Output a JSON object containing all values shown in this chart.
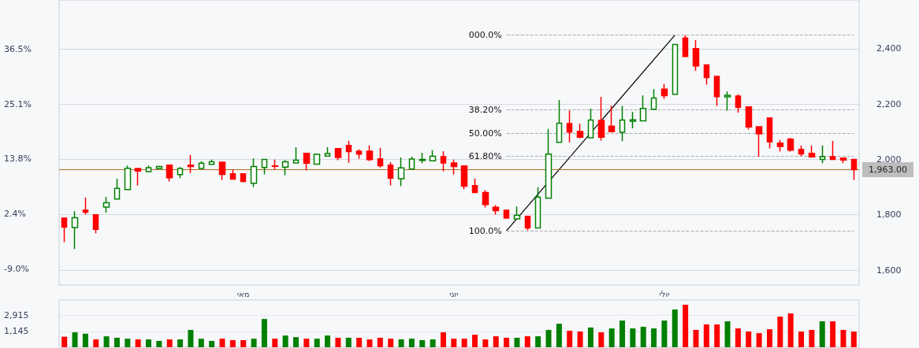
{
  "chart_data": [
    {
      "type": "candlestick",
      "categories": [
        null,
        null,
        null,
        null,
        null,
        null,
        null,
        null,
        null,
        null,
        null,
        null,
        null,
        null,
        null,
        null,
        null,
        "מאי",
        null,
        null,
        null,
        null,
        null,
        null,
        null,
        null,
        null,
        null,
        null,
        null,
        null,
        null,
        null,
        null,
        null,
        null,
        null,
        "יוני",
        null,
        null,
        null,
        null,
        null,
        null,
        null,
        null,
        null,
        null,
        null,
        null,
        null,
        null,
        null,
        null,
        null,
        null,
        null,
        "יולי",
        null,
        null,
        null,
        null,
        null,
        null,
        null,
        null,
        null,
        null,
        null,
        null,
        null,
        null,
        null,
        null,
        null,
        null
      ],
      "ohlc": [
        [
          1788,
          1788,
          1701,
          1755
        ],
        [
          1754,
          1813,
          1676,
          1789
        ],
        [
          1816,
          1862,
          1801,
          1809
        ],
        [
          1800,
          1800,
          1733,
          1747
        ],
        [
          1828,
          1865,
          1808,
          1843
        ],
        [
          1857,
          1930,
          1857,
          1895
        ],
        [
          1891,
          1978,
          1891,
          1968
        ],
        [
          1967,
          1967,
          1906,
          1958
        ],
        [
          1956,
          1978,
          1956,
          1970
        ],
        [
          1967,
          1977,
          1967,
          1974
        ],
        [
          1979,
          1979,
          1920,
          1934
        ],
        [
          1945,
          1972,
          1932,
          1967
        ],
        [
          1979,
          2016,
          1951,
          1974
        ],
        [
          1967,
          1993,
          1967,
          1986
        ],
        [
          1982,
          1999,
          1982,
          1991
        ],
        [
          1990,
          1990,
          1925,
          1946
        ],
        [
          1948,
          1964,
          1929,
          1929
        ],
        [
          1948,
          1950,
          1917,
          1920
        ],
        [
          1914,
          2004,
          1900,
          1974
        ],
        [
          1971,
          2000,
          1946,
          2000
        ],
        [
          1976,
          1999,
          1964,
          1975
        ],
        [
          1972,
          1998,
          1943,
          1991
        ],
        [
          1987,
          2044,
          1987,
          1997
        ],
        [
          2022,
          2022,
          1960,
          1986
        ],
        [
          1983,
          2021,
          1981,
          2018
        ],
        [
          2012,
          2044,
          2012,
          2021
        ],
        [
          2039,
          2039,
          1997,
          2007
        ],
        [
          2050,
          2067,
          1988,
          2028
        ],
        [
          2030,
          2036,
          2002,
          2019
        ],
        [
          2030,
          2050,
          1994,
          1999
        ],
        [
          2002,
          2042,
          1971,
          1977
        ],
        [
          1979,
          1990,
          1906,
          1932
        ],
        [
          1930,
          2007,
          1903,
          1969
        ],
        [
          1965,
          2010,
          1965,
          2001
        ],
        [
          1996,
          2024,
          1986,
          2000
        ],
        [
          1995,
          2033,
          1995,
          2011
        ],
        [
          2010,
          2030,
          1957,
          1987
        ],
        [
          1987,
          1999,
          1946,
          1974
        ],
        [
          1976,
          1976,
          1892,
          1903
        ],
        [
          1905,
          1931,
          1880,
          1880
        ],
        [
          1880,
          1889,
          1826,
          1837
        ],
        [
          1827,
          1835,
          1801,
          1815
        ],
        [
          1816,
          1818,
          1788,
          1788
        ],
        [
          1785,
          1830,
          1785,
          1798
        ],
        [
          1794,
          1794,
          1744,
          1752
        ],
        [
          1752,
          1899,
          1752,
          1863
        ],
        [
          1860,
          2110,
          1860,
          2019
        ],
        [
          2062,
          2215,
          2062,
          2131
        ],
        [
          2129,
          2176,
          2062,
          2099
        ],
        [
          2101,
          2129,
          2076,
          2080
        ],
        [
          2078,
          2183,
          2078,
          2142
        ],
        [
          2141,
          2226,
          2068,
          2080
        ],
        [
          2120,
          2194,
          2100,
          2100
        ],
        [
          2098,
          2193,
          2066,
          2142
        ],
        [
          2138,
          2172,
          2112,
          2143
        ],
        [
          2139,
          2231,
          2139,
          2184
        ],
        [
          2181,
          2254,
          2181,
          2222
        ],
        [
          2254,
          2273,
          2219,
          2230
        ],
        [
          2235,
          2415,
          2235,
          2415
        ],
        [
          2439,
          2449,
          2372,
          2372
        ],
        [
          2400,
          2431,
          2320,
          2338
        ],
        [
          2341,
          2344,
          2270,
          2296
        ],
        [
          2300,
          2300,
          2193,
          2227
        ],
        [
          2226,
          2246,
          2176,
          2232
        ],
        [
          2229,
          2235,
          2169,
          2188
        ],
        [
          2190,
          2190,
          2108,
          2117
        ],
        [
          2118,
          2118,
          2010,
          2092
        ],
        [
          2150,
          2150,
          2040,
          2063
        ],
        [
          2059,
          2070,
          2028,
          2047
        ],
        [
          2073,
          2078,
          2028,
          2033
        ],
        [
          2036,
          2050,
          2012,
          2020
        ],
        [
          2022,
          2050,
          2006,
          2009
        ],
        [
          2000,
          2050,
          1986,
          2010
        ],
        [
          2010,
          2067,
          2000,
          2000
        ],
        [
          2005,
          2005,
          1986,
          1998
        ],
        [
          2000,
          2000,
          1925,
          1963
        ]
      ],
      "colors": [
        "#ff0000",
        "#008000",
        "#ff0000",
        "#ff0000",
        "#008000",
        "#008000",
        "#008000",
        "#ff0000",
        "#008000",
        "#008000",
        "#ff0000",
        "#008000",
        "#ff0000",
        "#008000",
        "#008000",
        "#ff0000",
        "#ff0000",
        "#ff0000",
        "#008000",
        "#008000",
        "#ff0000",
        "#008000",
        "#008000",
        "#ff0000",
        "#008000",
        "#008000",
        "#ff0000",
        "#ff0000",
        "#ff0000",
        "#ff0000",
        "#ff0000",
        "#ff0000",
        "#008000",
        "#008000",
        "#008000",
        "#008000",
        "#ff0000",
        "#ff0000",
        "#ff0000",
        "#ff0000",
        "#ff0000",
        "#ff0000",
        "#ff0000",
        "#008000",
        "#ff0000",
        "#008000",
        "#008000",
        "#008000",
        "#ff0000",
        "#ff0000",
        "#008000",
        "#ff0000",
        "#ff0000",
        "#008000",
        "#008000",
        "#008000",
        "#008000",
        "#ff0000",
        "#008000",
        "#ff0000",
        "#ff0000",
        "#ff0000",
        "#ff0000",
        "#008000",
        "#ff0000",
        "#ff0000",
        "#ff0000",
        "#ff0000",
        "#ff0000",
        "#ff0000",
        "#ff0000",
        "#ff0000",
        "#008000",
        "#ff0000",
        "#ff0000",
        "#ff0000"
      ],
      "series": [
        {
          "type": "line",
          "color": "#000000",
          "values": [
            null,
            null,
            null,
            null,
            null,
            null,
            null,
            null,
            null,
            null,
            null,
            null,
            null,
            null,
            null,
            null,
            null,
            null,
            null,
            null,
            null,
            null,
            null,
            null,
            null,
            null,
            null,
            null,
            null,
            null,
            null,
            null,
            null,
            null,
            null,
            null,
            null,
            null,
            null,
            null,
            null,
            null,
            1742,
            null,
            null,
            null,
            null,
            null,
            null,
            null,
            null,
            null,
            null,
            null,
            null,
            null,
            null,
            null,
            2449,
            null,
            null,
            null,
            null,
            null,
            null,
            null,
            null,
            null,
            null,
            null,
            null,
            null,
            null,
            null,
            null,
            null
          ]
        }
      ],
      "ylim": [
        1546,
        2576
      ],
      "yticks": [
        {
          "value": 1600,
          "label": "1,600"
        },
        {
          "value": 1800,
          "label": "1,800"
        },
        {
          "value": 2000,
          "label": "2,000"
        },
        {
          "value": 2200,
          "label": "2,200"
        },
        {
          "value": 2400,
          "label": "2,400"
        }
      ],
      "y2lim": [
        -12.3,
        46.6
      ],
      "y2ticks": [
        {
          "value": -9.0,
          "label": "-9.0%"
        },
        {
          "value": 2.4,
          "label": "2.4%"
        },
        {
          "value": 13.8,
          "label": "13.8%"
        },
        {
          "value": 25.1,
          "label": "25.1%"
        },
        {
          "value": 36.5,
          "label": "36.5%"
        }
      ],
      "ref_lines": [
        {
          "axis": "y",
          "value": 2449,
          "color": "#aaaaaa",
          "line_style": "dashed"
        },
        {
          "axis": "y",
          "value": 2179,
          "color": "#aaaaaa",
          "line_style": "dashed"
        },
        {
          "axis": "y",
          "value": 2095,
          "color": "#aaaaaa",
          "line_style": "dashed"
        },
        {
          "axis": "y",
          "value": 2012,
          "color": "#aaaaaa",
          "line_style": "dashed"
        },
        {
          "axis": "y",
          "value": 1742,
          "color": "#aaaaaa",
          "line_style": "dashed"
        },
        {
          "axis": "y",
          "value": 1963,
          "label": "1,963.00",
          "color": "#b86b1e",
          "line_style": "solid"
        }
      ],
      "annotations": [
        "000.0%",
        "38.20%",
        "50.00%",
        "61.80%",
        "100.0%"
      ],
      "grid": "y",
      "marker": "none"
    },
    {
      "type": "bar",
      "categories": [
        null,
        null,
        null,
        null,
        null,
        null,
        null,
        null,
        null,
        null,
        null,
        null,
        null,
        null,
        null,
        null,
        null,
        null,
        null,
        null,
        null,
        null,
        null,
        null,
        null,
        null,
        null,
        null,
        null,
        null,
        null,
        null,
        null,
        null,
        null,
        null,
        null,
        null,
        null,
        null,
        null,
        null,
        null,
        null,
        null,
        null,
        null,
        null,
        null,
        null,
        null,
        null,
        null,
        null,
        null,
        null,
        null,
        null,
        null,
        null,
        null,
        null,
        null,
        null,
        null,
        null,
        null,
        null,
        null,
        null,
        null,
        null,
        null,
        null,
        null,
        null
      ],
      "values": [
        840,
        1080,
        1000,
        720,
        860,
        790,
        750,
        720,
        720,
        660,
        720,
        720,
        1240,
        750,
        660,
        750,
        690,
        690,
        750,
        2320,
        750,
        900,
        820,
        750,
        750,
        900,
        790,
        790,
        790,
        720,
        790,
        750,
        720,
        750,
        690,
        720,
        1080,
        750,
        750,
        940,
        720,
        860,
        790,
        790,
        860,
        860,
        1240,
        1770,
        1180,
        1130,
        1420,
        1080,
        1350,
        2120,
        1350,
        1480,
        1350,
        2120,
        4000,
        5240,
        1240,
        1700,
        1700,
        2030,
        1350,
        1130,
        1030,
        1290,
        2660,
        3190,
        1130,
        1240,
        2030,
        2030,
        1240,
        1130
      ],
      "colors": [
        "#ff0000",
        "#008000",
        "#008000",
        "#ff0000",
        "#008000",
        "#008000",
        "#008000",
        "#ff0000",
        "#008000",
        "#008000",
        "#ff0000",
        "#008000",
        "#008000",
        "#008000",
        "#008000",
        "#ff0000",
        "#ff0000",
        "#ff0000",
        "#008000",
        "#008000",
        "#ff0000",
        "#008000",
        "#008000",
        "#ff0000",
        "#008000",
        "#008000",
        "#ff0000",
        "#008000",
        "#ff0000",
        "#ff0000",
        "#ff0000",
        "#ff0000",
        "#008000",
        "#008000",
        "#008000",
        "#008000",
        "#ff0000",
        "#ff0000",
        "#ff0000",
        "#ff0000",
        "#ff0000",
        "#ff0000",
        "#ff0000",
        "#008000",
        "#ff0000",
        "#008000",
        "#008000",
        "#008000",
        "#ff0000",
        "#ff0000",
        "#008000",
        "#ff0000",
        "#008000",
        "#008000",
        "#008000",
        "#008000",
        "#008000",
        "#008000",
        "#008000",
        "#ff0000",
        "#ff0000",
        "#ff0000",
        "#ff0000",
        "#008000",
        "#ff0000",
        "#ff0000",
        "#ff0000",
        "#ff0000",
        "#ff0000",
        "#ff0000",
        "#ff0000",
        "#ff0000",
        "#008000",
        "#ff0000",
        "#ff0000",
        "#ff0000"
      ],
      "log": true,
      "ylim": [
        460,
        6900
      ],
      "yticks": [
        {
          "value": 1145,
          "label": "1,145"
        },
        {
          "value": 2915,
          "label": "2,915"
        }
      ],
      "grid": "y",
      "tick_labels": "y"
    }
  ]
}
